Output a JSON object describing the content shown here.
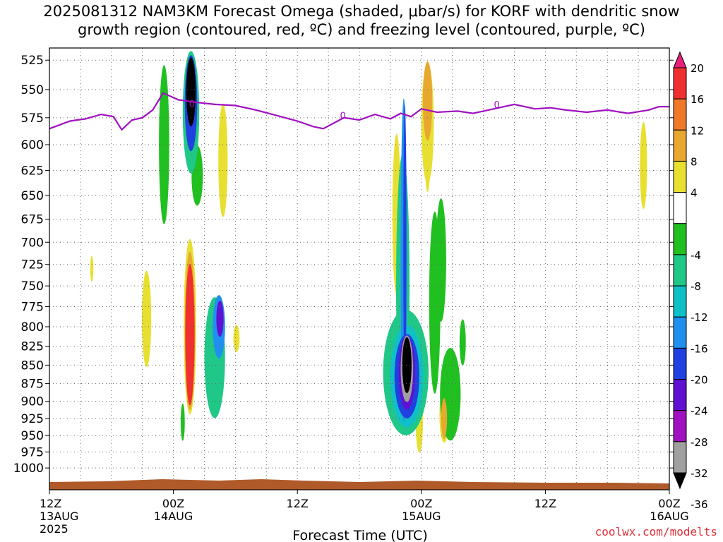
{
  "title": {
    "line1": "2025081312 NAM3KM Forecast Omega (shaded, μbar/s) for KORF with dendritic snow",
    "line2": "growth region (contoured, red, ºC) and freezing level (contoured, purple, ºC)"
  },
  "watermark": "coolwx.com/modelts",
  "chart_data": {
    "type": "heatmap",
    "xlabel": "Forecast Time (UTC)",
    "x_range_hours": [
      0,
      60
    ],
    "x_ticks": [
      {
        "h": 0,
        "labels": [
          "12Z",
          "13AUG",
          "2025"
        ]
      },
      {
        "h": 12,
        "labels": [
          "00Z",
          "14AUG"
        ]
      },
      {
        "h": 24,
        "labels": [
          "12Z"
        ]
      },
      {
        "h": 36,
        "labels": [
          "00Z",
          "15AUG"
        ]
      },
      {
        "h": 48,
        "labels": [
          "12Z"
        ]
      },
      {
        "h": 60,
        "labels": [
          "00Z",
          "16AUG"
        ]
      }
    ],
    "ylabel": "",
    "y_scale": "log-pressure",
    "y_range_hpa": [
      1035,
      515
    ],
    "y_ticks": [
      525,
      550,
      575,
      600,
      625,
      650,
      675,
      700,
      725,
      750,
      775,
      800,
      825,
      850,
      875,
      900,
      925,
      950,
      975,
      1000
    ],
    "grid": "dotted",
    "colorbar": {
      "labels": [
        "20",
        "16",
        "12",
        "8",
        "4",
        "-4",
        "-8",
        "-12",
        "-16",
        "-20",
        "-24",
        "-28",
        "-32",
        "-36"
      ],
      "colors": [
        "#e8207a",
        "#f03030",
        "#f07828",
        "#e8a830",
        "#e8e030",
        "#ffffff",
        "#20c020",
        "#20c888",
        "#10c0c8",
        "#2090f0",
        "#2040e0",
        "#6010d0",
        "#a010c0",
        "#a0a0a0",
        "#000000"
      ]
    },
    "freezing_level": {
      "color": "#a010c0",
      "label": "0",
      "points": [
        [
          0,
          585
        ],
        [
          2,
          578
        ],
        [
          3.5,
          576
        ],
        [
          5,
          572
        ],
        [
          6.2,
          574
        ],
        [
          7,
          586
        ],
        [
          8,
          577
        ],
        [
          9,
          575
        ],
        [
          10,
          568
        ],
        [
          11,
          553
        ],
        [
          12.5,
          559
        ],
        [
          14,
          561
        ],
        [
          16,
          563
        ],
        [
          18,
          564
        ],
        [
          20,
          568
        ],
        [
          22,
          573
        ],
        [
          24,
          578
        ],
        [
          25.5,
          583
        ],
        [
          26.5,
          585
        ],
        [
          27.5,
          580
        ],
        [
          28.5,
          575
        ],
        [
          30,
          577
        ],
        [
          31.5,
          572
        ],
        [
          33,
          576
        ],
        [
          34,
          571
        ],
        [
          35,
          574
        ],
        [
          36,
          567
        ],
        [
          37.5,
          570
        ],
        [
          39.5,
          569
        ],
        [
          41,
          571
        ],
        [
          43,
          567
        ],
        [
          45,
          563
        ],
        [
          47,
          567
        ],
        [
          48.5,
          566
        ],
        [
          50,
          568
        ],
        [
          52,
          570
        ],
        [
          54,
          568
        ],
        [
          56,
          571
        ],
        [
          58,
          568
        ],
        [
          59,
          565
        ],
        [
          60,
          565
        ]
      ],
      "label_points": [
        [
          13.8,
          562
        ],
        [
          28.4,
          573
        ],
        [
          43.3,
          563
        ]
      ]
    },
    "omega_blobs": [
      {
        "h": 11.1,
        "p": 600,
        "dh": 0.5,
        "dp": 150,
        "v": -6
      },
      {
        "h": 13.7,
        "p": 570,
        "dh": 0.8,
        "dp": 110,
        "v": -8
      },
      {
        "h": 13.7,
        "p": 562,
        "dh": 0.6,
        "dp": 85,
        "v": -20
      },
      {
        "h": 13.7,
        "p": 552,
        "dh": 0.45,
        "dp": 60,
        "v": -36
      },
      {
        "h": 14.3,
        "p": 630,
        "dh": 0.55,
        "dp": 60,
        "v": -6
      },
      {
        "h": 13.6,
        "p": 800,
        "dh": 0.6,
        "dp": 220,
        "v": 6
      },
      {
        "h": 13.6,
        "p": 805,
        "dh": 0.5,
        "dp": 200,
        "v": 12
      },
      {
        "h": 13.6,
        "p": 810,
        "dh": 0.45,
        "dp": 180,
        "v": 20
      },
      {
        "h": 12.9,
        "p": 930,
        "dh": 0.2,
        "dp": 55,
        "v": -6
      },
      {
        "h": 16.8,
        "p": 615,
        "dh": 0.45,
        "dp": 110,
        "v": 5
      },
      {
        "h": 16.0,
        "p": 840,
        "dh": 1.0,
        "dp": 160,
        "v": -8
      },
      {
        "h": 16.4,
        "p": 800,
        "dh": 0.6,
        "dp": 80,
        "v": -16
      },
      {
        "h": 16.5,
        "p": 790,
        "dh": 0.35,
        "dp": 45,
        "v": -24
      },
      {
        "h": 18.1,
        "p": 815,
        "dh": 0.3,
        "dp": 35,
        "v": 5
      },
      {
        "h": 4.1,
        "p": 730,
        "dh": 0.15,
        "dp": 30,
        "v": 5
      },
      {
        "h": 9.4,
        "p": 790,
        "dh": 0.45,
        "dp": 120,
        "v": 5
      },
      {
        "h": 33.6,
        "p": 670,
        "dh": 0.4,
        "dp": 170,
        "v": 5
      },
      {
        "h": 34.2,
        "p": 750,
        "dh": 0.65,
        "dp": 310,
        "v": -8
      },
      {
        "h": 34.3,
        "p": 720,
        "dh": 0.3,
        "dp": 360,
        "v": -16
      },
      {
        "h": 34.4,
        "p": 700,
        "dh": 0.15,
        "dp": 300,
        "v": -22
      },
      {
        "h": 34.5,
        "p": 860,
        "dh": 2.2,
        "dp": 170,
        "v": -8
      },
      {
        "h": 34.6,
        "p": 865,
        "dh": 1.6,
        "dp": 140,
        "v": -14
      },
      {
        "h": 34.6,
        "p": 865,
        "dh": 1.2,
        "dp": 115,
        "v": -20
      },
      {
        "h": 34.6,
        "p": 860,
        "dh": 0.8,
        "dp": 100,
        "v": -26
      },
      {
        "h": 34.6,
        "p": 855,
        "dh": 0.6,
        "dp": 90,
        "v": -32
      },
      {
        "h": 34.6,
        "p": 850,
        "dh": 0.45,
        "dp": 75,
        "v": -36
      },
      {
        "h": 36.6,
        "p": 580,
        "dh": 0.6,
        "dp": 110,
        "v": 5
      },
      {
        "h": 36.6,
        "p": 560,
        "dh": 0.45,
        "dp": 70,
        "v": 12
      },
      {
        "h": 36.6,
        "p": 600,
        "dh": 0.3,
        "dp": 90,
        "v": 5
      },
      {
        "h": 37.3,
        "p": 770,
        "dh": 0.55,
        "dp": 220,
        "v": -6
      },
      {
        "h": 38.8,
        "p": 890,
        "dh": 1.0,
        "dp": 130,
        "v": -7
      },
      {
        "h": 37.9,
        "p": 720,
        "dh": 0.5,
        "dp": 140,
        "v": -6
      },
      {
        "h": 38.2,
        "p": 920,
        "dh": 0.45,
        "dp": 80,
        "v": 6
      },
      {
        "h": 38.2,
        "p": 925,
        "dh": 0.28,
        "dp": 60,
        "v": 12
      },
      {
        "h": 35.8,
        "p": 930,
        "dh": 0.35,
        "dp": 90,
        "v": 5
      },
      {
        "h": 40.0,
        "p": 820,
        "dh": 0.3,
        "dp": 60,
        "v": -6
      },
      {
        "h": 57.5,
        "p": 620,
        "dh": 0.35,
        "dp": 85,
        "v": 5
      }
    ]
  }
}
